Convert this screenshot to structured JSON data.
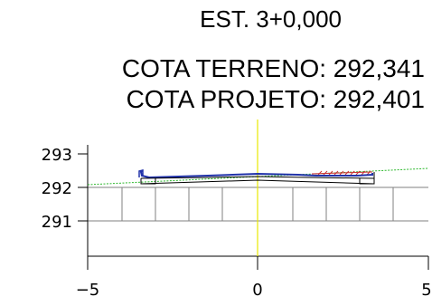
{
  "header": {
    "station": "EST. 3+0,000",
    "terrain_elevation": "COTA TERRENO: 292,341",
    "design_elevation": "COTA PROJETO: 292,401"
  },
  "axes": {
    "y_labels": [
      "293",
      "292",
      "291"
    ],
    "x_labels": [
      "−5",
      "0",
      "5"
    ]
  },
  "colors": {
    "grid": "#808080",
    "axis": "#000000",
    "centerline": "#e8e800",
    "terrain": "#2db82d",
    "design": "#2233aa",
    "cut_fill": "#cc3333"
  }
}
